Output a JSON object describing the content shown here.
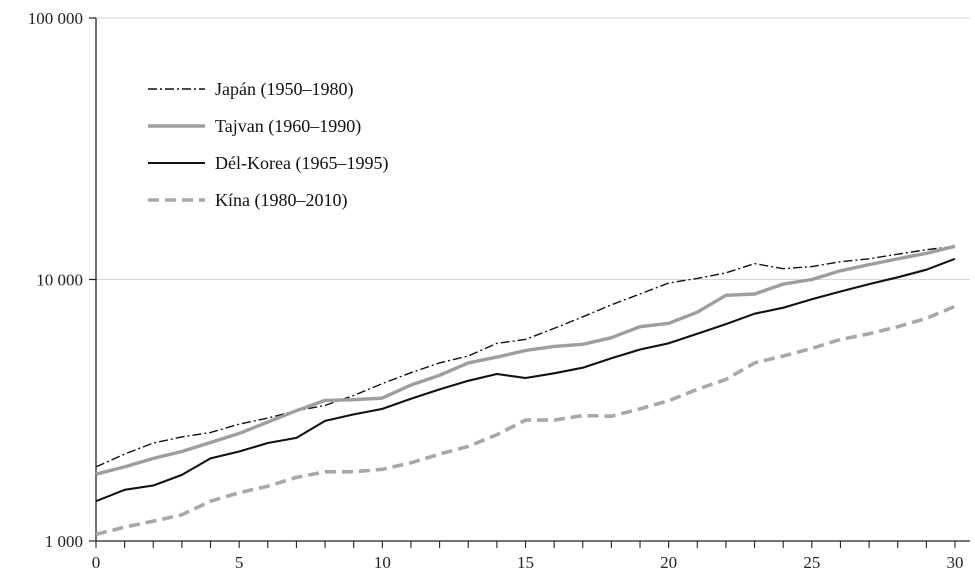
{
  "chart_data": {
    "type": "line",
    "title": "",
    "xlabel": "",
    "ylabel": "",
    "y_scale": "log",
    "xlim": [
      0,
      30
    ],
    "ylim": [
      1000,
      100000
    ],
    "x_ticks": [
      0,
      5,
      10,
      15,
      20,
      25,
      30
    ],
    "x_tick_labels": [
      "0",
      "5",
      "10",
      "15",
      "20",
      "25",
      "30"
    ],
    "y_ticks": [
      1000,
      10000,
      100000
    ],
    "y_tick_labels": [
      "1 000",
      "10 000",
      "100 000"
    ],
    "grid": "horizontal lines at y ticks",
    "legend_position": "top-left",
    "x": [
      0,
      1,
      2,
      3,
      4,
      5,
      6,
      7,
      8,
      9,
      10,
      11,
      12,
      13,
      14,
      15,
      16,
      17,
      18,
      19,
      20,
      21,
      22,
      23,
      24,
      25,
      26,
      27,
      28,
      29,
      30
    ],
    "series": [
      {
        "name": "Japán (1950–1980)",
        "color": "#111111",
        "dash": "dash-dot",
        "values": [
          1920,
          2150,
          2370,
          2500,
          2600,
          2800,
          2950,
          3150,
          3300,
          3600,
          4000,
          4400,
          4800,
          5100,
          5700,
          5900,
          6500,
          7200,
          8000,
          8800,
          9700,
          10100,
          10600,
          11500,
          11000,
          11200,
          11700,
          12000,
          12500,
          13000,
          13400
        ]
      },
      {
        "name": "Tajvan (1960–1990)",
        "color": "#9e9e9e",
        "dash": "solid-thick",
        "values": [
          1800,
          1920,
          2070,
          2200,
          2380,
          2580,
          2850,
          3150,
          3450,
          3470,
          3520,
          3950,
          4300,
          4800,
          5050,
          5350,
          5550,
          5650,
          5990,
          6600,
          6800,
          7500,
          8700,
          8800,
          9600,
          10000,
          10800,
          11400,
          12000,
          12600,
          13400
        ]
      },
      {
        "name": "Dél-Korea (1965–1995)",
        "color": "#111111",
        "dash": "solid",
        "values": [
          1420,
          1570,
          1630,
          1790,
          2070,
          2200,
          2370,
          2480,
          2880,
          3050,
          3200,
          3500,
          3800,
          4100,
          4350,
          4200,
          4380,
          4600,
          5000,
          5400,
          5700,
          6200,
          6750,
          7400,
          7800,
          8400,
          9000,
          9600,
          10200,
          10900,
          12000
        ]
      },
      {
        "name": "Kína (1980–2010)",
        "color": "#a8a8a8",
        "dash": "dashed-thick",
        "values": [
          1060,
          1130,
          1190,
          1260,
          1420,
          1530,
          1620,
          1750,
          1840,
          1840,
          1880,
          1990,
          2150,
          2300,
          2550,
          2900,
          2900,
          3020,
          3000,
          3200,
          3440,
          3800,
          4150,
          4800,
          5100,
          5450,
          5900,
          6200,
          6600,
          7100,
          7900
        ]
      }
    ]
  }
}
